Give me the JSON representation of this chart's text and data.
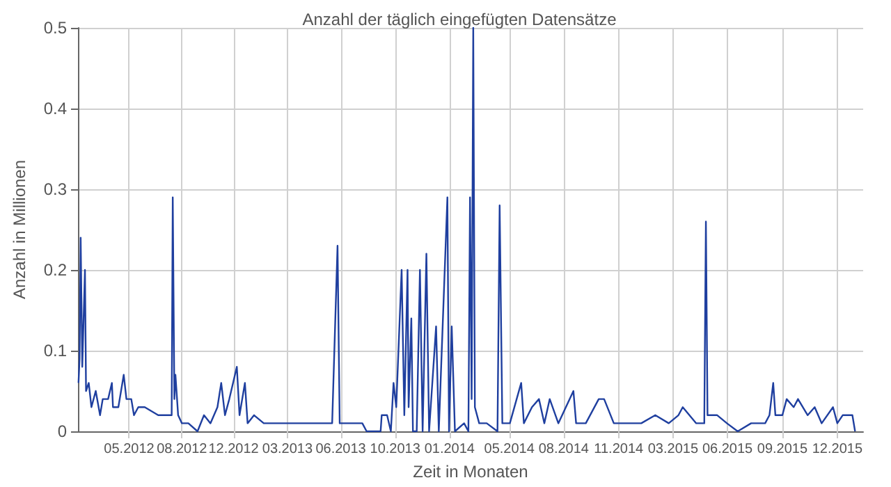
{
  "chart_data": {
    "type": "line",
    "title": "Anzahl der täglich eingefügten Datensätze",
    "xlabel": "Zeit in Monaten",
    "ylabel": "Anzahl in Millionen",
    "x": [
      "2012-02-21",
      "2012-02-23",
      "2012-02-25",
      "2012-02-28",
      "2012-03-04",
      "2012-03-06",
      "2012-03-11",
      "2012-03-16",
      "2012-03-24",
      "2012-04-01",
      "2012-04-06",
      "2012-04-16",
      "2012-04-23",
      "2012-04-25",
      "2012-05-05",
      "2012-05-15",
      "2012-05-20",
      "2012-05-29",
      "2012-06-03",
      "2012-06-11",
      "2012-06-23",
      "2012-07-18",
      "2012-08-12",
      "2012-08-14",
      "2012-08-17",
      "2012-08-19",
      "2012-08-24",
      "2012-08-31",
      "2012-09-12",
      "2012-09-29",
      "2012-10-11",
      "2012-10-23",
      "2012-11-05",
      "2012-11-12",
      "2012-11-19",
      "2012-11-27",
      "2012-12-11",
      "2012-12-16",
      "2012-12-26",
      "2012-12-31",
      "2013-01-12",
      "2013-01-30",
      "2013-02-24",
      "2013-03-22",
      "2013-04-17",
      "2013-05-12",
      "2013-06-06",
      "2013-06-16",
      "2013-06-20",
      "2013-07-14",
      "2013-08-01",
      "2013-08-09",
      "2013-09-04",
      "2013-09-06",
      "2013-09-16",
      "2013-09-23",
      "2013-09-28",
      "2013-10-03",
      "2013-10-13",
      "2013-10-18",
      "2013-10-24",
      "2013-10-26",
      "2013-10-31",
      "2013-11-03",
      "2013-11-10",
      "2013-11-16",
      "2013-11-21",
      "2013-11-28",
      "2013-12-03",
      "2013-12-16",
      "2013-12-21",
      "2014-01-06",
      "2014-01-09",
      "2014-01-14",
      "2014-01-20",
      "2014-02-06",
      "2014-02-14",
      "2014-02-17",
      "2014-02-20",
      "2014-02-23",
      "2014-02-26",
      "2014-03-06",
      "2014-03-20",
      "2014-04-09",
      "2014-04-13",
      "2014-04-18",
      "2014-05-02",
      "2014-05-23",
      "2014-05-28",
      "2014-06-12",
      "2014-06-25",
      "2014-07-05",
      "2014-07-15",
      "2014-07-31",
      "2014-08-28",
      "2014-09-02",
      "2014-09-20",
      "2014-10-14",
      "2014-10-24",
      "2014-11-11",
      "2014-12-07",
      "2015-01-01",
      "2015-01-27",
      "2015-02-21",
      "2015-03-11",
      "2015-03-19",
      "2015-04-13",
      "2015-04-28",
      "2015-05-01",
      "2015-05-04",
      "2015-05-22",
      "2015-06-09",
      "2015-06-29",
      "2015-07-24",
      "2015-08-19",
      "2015-08-27",
      "2015-09-03",
      "2015-09-07",
      "2015-09-20",
      "2015-09-28",
      "2015-10-11",
      "2015-10-19",
      "2015-11-06",
      "2015-11-19",
      "2015-12-02",
      "2015-12-23",
      "2015-12-31",
      "2016-01-10",
      "2016-01-28",
      "2016-02-02"
    ],
    "series": [
      {
        "color": "#1f3f9f",
        "values": [
          0.06,
          0.09,
          0.24,
          0.08,
          0.2,
          0.05,
          0.06,
          0.03,
          0.05,
          0.02,
          0.04,
          0.04,
          0.06,
          0.03,
          0.03,
          0.07,
          0.04,
          0.04,
          0.02,
          0.03,
          0.03,
          0.02,
          0.02,
          0.29,
          0.04,
          0.07,
          0.02,
          0.01,
          0.01,
          0,
          0.02,
          0.01,
          0.03,
          0.06,
          0.02,
          0.04,
          0.08,
          0.02,
          0.06,
          0.01,
          0.02,
          0.01,
          0.01,
          0.01,
          0.01,
          0.01,
          0.01,
          0.23,
          0.01,
          0.01,
          0.01,
          0,
          0,
          0.02,
          0.02,
          0,
          0.06,
          0.03,
          0.2,
          0.02,
          0.2,
          0.03,
          0.14,
          0,
          0,
          0.2,
          0,
          0.22,
          0,
          0.13,
          0,
          0.29,
          0,
          0.13,
          0,
          0.01,
          0,
          0.29,
          0.04,
          0.5,
          0.03,
          0.01,
          0.01,
          0,
          0.28,
          0.01,
          0.01,
          0.06,
          0.01,
          0.03,
          0.04,
          0.01,
          0.04,
          0.01,
          0.05,
          0.01,
          0.01,
          0.04,
          0.04,
          0.01,
          0.01,
          0.01,
          0.02,
          0.01,
          0.02,
          0.03,
          0.01,
          0.01,
          0.26,
          0.02,
          0.02,
          0.01,
          0,
          0.01,
          0.01,
          0.02,
          0.06,
          0.02,
          0.02,
          0.04,
          0.03,
          0.04,
          0.02,
          0.03,
          0.01,
          0.03,
          0.01,
          0.02,
          0.02,
          0
        ]
      }
    ],
    "xlim": [
      "2012-02-20",
      "2016-02-17"
    ],
    "xticks": [
      {
        "value": "2012-05-25",
        "label": "05.2012"
      },
      {
        "value": "2012-08-31",
        "label": "08.2012"
      },
      {
        "value": "2012-12-05",
        "label": "12.2012"
      },
      {
        "value": "2013-03-15",
        "label": "03.2013"
      },
      {
        "value": "2013-06-22",
        "label": "06.2013"
      },
      {
        "value": "2013-10-01",
        "label": "10.2013"
      },
      {
        "value": "2014-01-10",
        "label": "01.2014"
      },
      {
        "value": "2014-05-01",
        "label": "05.2014"
      },
      {
        "value": "2014-08-10",
        "label": "08.2014"
      },
      {
        "value": "2014-11-20",
        "label": "11.2014"
      },
      {
        "value": "2015-03-01",
        "label": "03.2015"
      },
      {
        "value": "2015-06-10",
        "label": "06.2015"
      },
      {
        "value": "2015-09-20",
        "label": "09.2015"
      },
      {
        "value": "2015-12-31",
        "label": "12.2015"
      }
    ],
    "ylim": [
      0,
      0.5
    ],
    "yticks": [
      0,
      0.1,
      0.2,
      0.3,
      0.4,
      0.5
    ],
    "grid": true,
    "marker": "none",
    "line_style": "solid"
  }
}
